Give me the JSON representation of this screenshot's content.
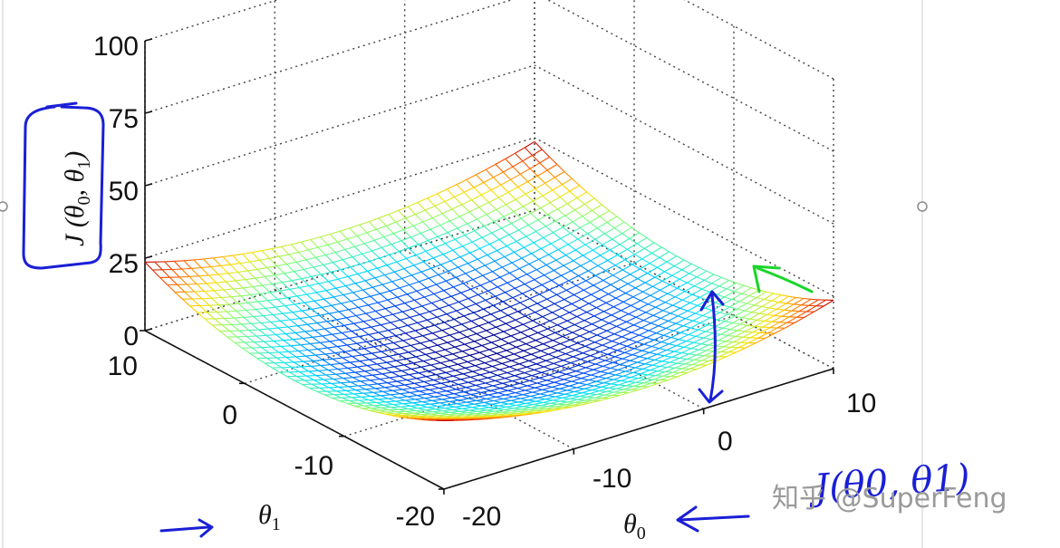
{
  "chart_data": {
    "type": "surface",
    "xlabel": "θ0",
    "ylabel": "θ1",
    "zlabel": "J(θ0, θ1)",
    "x_ticks": [
      "-20",
      "-10",
      "0",
      "10"
    ],
    "y_ticks": [
      "-20",
      "-10",
      "0",
      "10"
    ],
    "z_ticks": [
      "0",
      "25",
      "50",
      "75",
      "100"
    ],
    "xlim": [
      -20,
      10
    ],
    "ylim": [
      -20,
      10
    ],
    "zlim": [
      0,
      100
    ],
    "grid": true,
    "colormap": [
      "#00008f",
      "#0050ff",
      "#00e0ff",
      "#7fff7f",
      "#ffe000",
      "#ff5a00",
      "#c00000"
    ],
    "mesh": {
      "x_start": -20,
      "x_end": 10,
      "y_start": -20,
      "y_end": 10,
      "steps": 40
    }
  },
  "annotations": {
    "handwriting": "J(θ0, θ1)"
  },
  "watermark": "知乎 @SuperFeng"
}
